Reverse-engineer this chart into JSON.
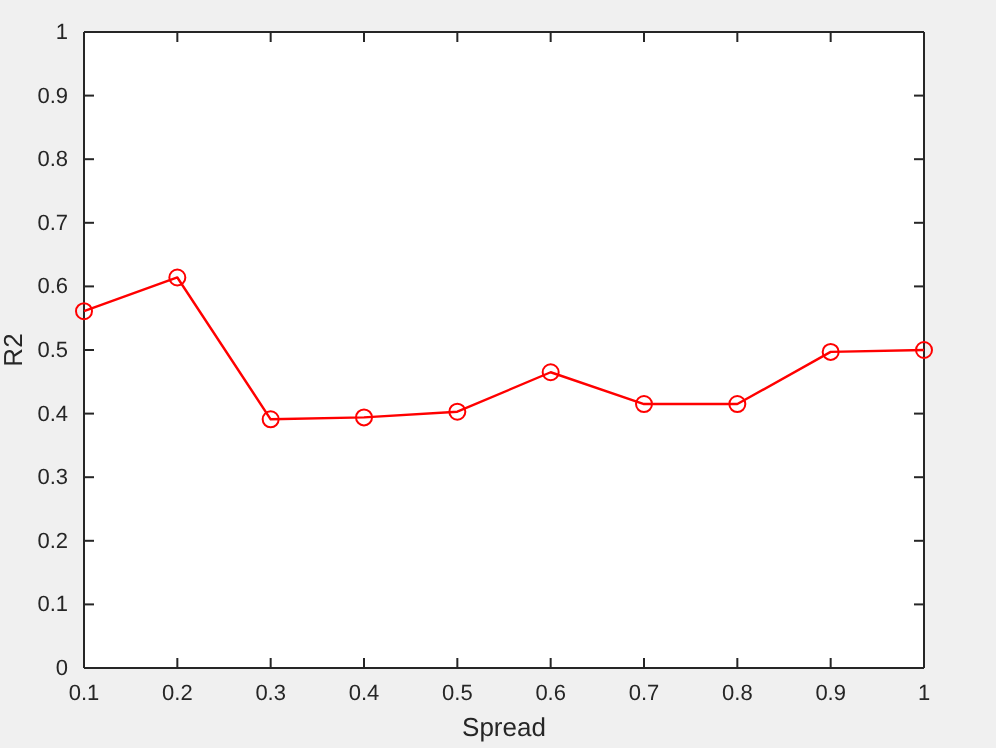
{
  "chart_data": {
    "type": "line",
    "xlabel": "Spread",
    "ylabel": "R2",
    "x": [
      0.1,
      0.2,
      0.3,
      0.4,
      0.5,
      0.6,
      0.7,
      0.8,
      0.9,
      1
    ],
    "series": [
      {
        "color": "#ff0000",
        "values": [
          0.561,
          0.614,
          0.391,
          0.394,
          0.403,
          0.465,
          0.415,
          0.415,
          0.497,
          0.5
        ]
      }
    ],
    "xlim": [
      0.1,
      1
    ],
    "xticks": [
      0.1,
      0.2,
      0.3,
      0.4,
      0.5,
      0.6,
      0.7,
      0.8,
      0.9,
      1
    ],
    "ylim": [
      0,
      1
    ],
    "yticks": [
      0,
      0.1,
      0.2,
      0.3,
      0.4,
      0.5,
      0.6,
      0.7,
      0.8,
      0.9,
      1
    ],
    "grid": false,
    "marker": "circle",
    "line_style": "solid"
  }
}
